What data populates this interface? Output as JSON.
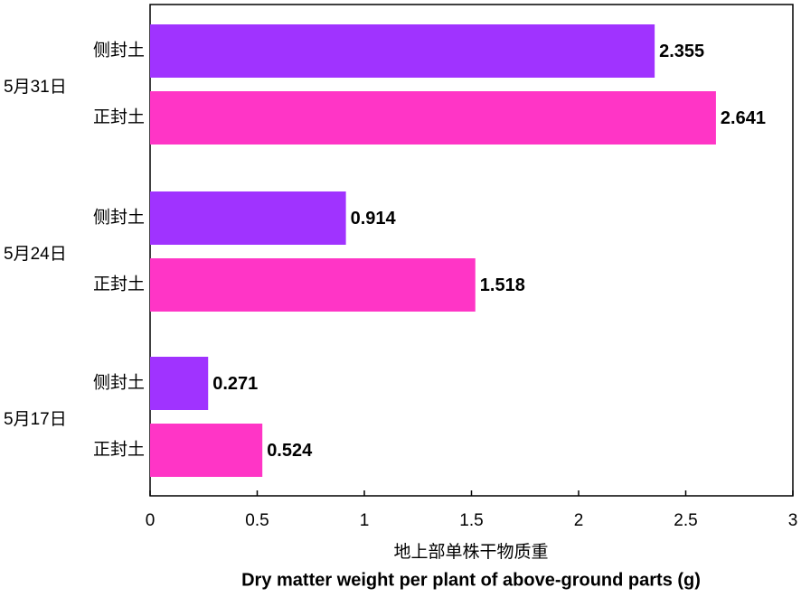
{
  "chart_data": {
    "type": "grouped-hbar",
    "xlabel": "地上部单株干物质重",
    "xlabel_en": "Dry matter weight per plant of above-ground parts (g)",
    "categories": [
      "5月31日",
      "5月24日",
      "5月17日"
    ],
    "series": [
      {
        "name": "侧封土",
        "color": "#a033ff",
        "values": [
          2.355,
          0.914,
          0.271
        ]
      },
      {
        "name": "正封土",
        "color": "#ff35c6",
        "values": [
          2.641,
          1.518,
          0.524
        ]
      }
    ],
    "xlim": [
      0,
      3
    ],
    "xticks": [
      0,
      0.5,
      1,
      1.5,
      2,
      2.5,
      3
    ]
  }
}
